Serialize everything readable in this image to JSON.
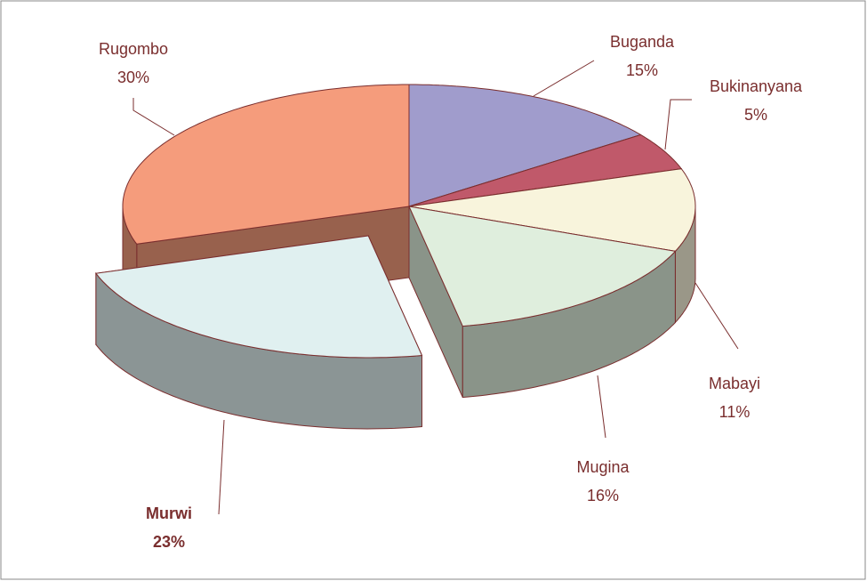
{
  "chart_data": {
    "type": "pie",
    "categories": [
      "Buganda",
      "Bukinanyana",
      "Mabayi",
      "Mugina",
      "Murwi",
      "Rugombo"
    ],
    "values": [
      15,
      5,
      11,
      16,
      23,
      30
    ],
    "value_labels": [
      "15%",
      "5%",
      "11%",
      "16%",
      "23%",
      "30%"
    ],
    "colors": [
      "#a09ccc",
      "#c0596a",
      "#f8f4dc",
      "#dfeedd",
      "#e0f0f0",
      "#f59c7c"
    ],
    "exploded": [
      "Murwi"
    ]
  }
}
